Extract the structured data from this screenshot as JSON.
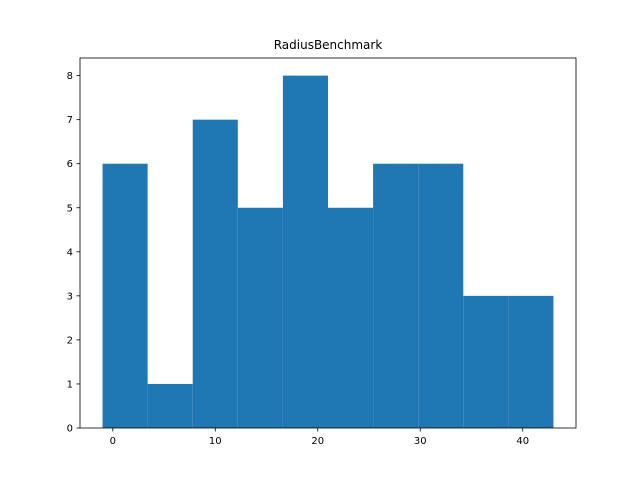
{
  "chart_data": {
    "type": "bar",
    "title": "RadiusBenchmark",
    "xlabel": "",
    "ylabel": "",
    "bins": [
      {
        "x0": -1.0,
        "x1": 3.4,
        "value": 6
      },
      {
        "x0": 3.4,
        "x1": 7.8,
        "value": 1
      },
      {
        "x0": 7.8,
        "x1": 12.2,
        "value": 7
      },
      {
        "x0": 12.2,
        "x1": 16.6,
        "value": 5
      },
      {
        "x0": 16.6,
        "x1": 21.0,
        "value": 8
      },
      {
        "x0": 21.0,
        "x1": 25.4,
        "value": 5
      },
      {
        "x0": 25.4,
        "x1": 29.8,
        "value": 6
      },
      {
        "x0": 29.8,
        "x1": 34.2,
        "value": 6
      },
      {
        "x0": 34.2,
        "x1": 38.6,
        "value": 3
      },
      {
        "x0": 38.6,
        "x1": 43.0,
        "value": 3
      }
    ],
    "xlim": [
      -3.2,
      45.2
    ],
    "ylim": [
      0,
      8.4
    ],
    "xticks": [
      0,
      10,
      20,
      30,
      40
    ],
    "yticks": [
      0,
      1,
      2,
      3,
      4,
      5,
      6,
      7,
      8
    ],
    "bar_color": "#1f77b4",
    "grid": false,
    "legend": "none"
  }
}
